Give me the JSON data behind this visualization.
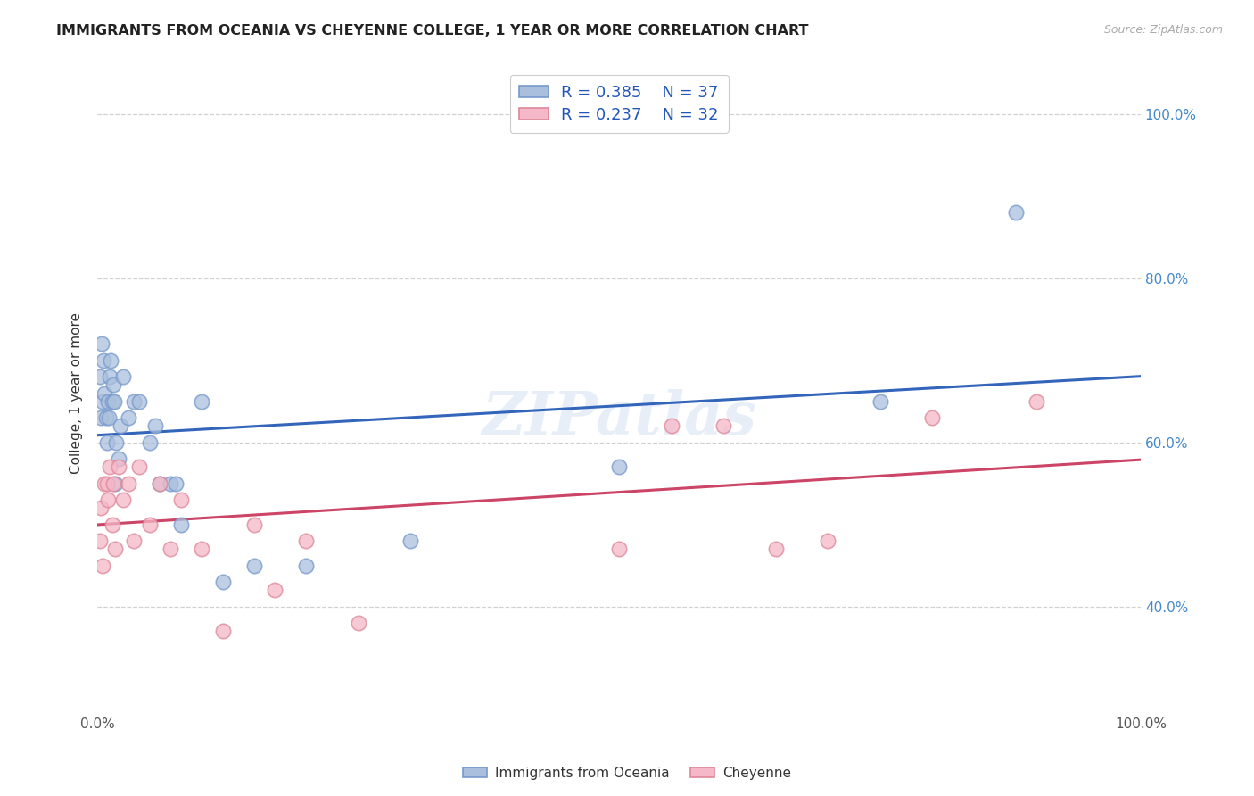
{
  "title": "IMMIGRANTS FROM OCEANIA VS CHEYENNE COLLEGE, 1 YEAR OR MORE CORRELATION CHART",
  "source": "Source: ZipAtlas.com",
  "ylabel": "College, 1 year or more",
  "legend_label1": "Immigrants from Oceania",
  "legend_label2": "Cheyenne",
  "r1": "0.385",
  "n1": "37",
  "r2": "0.237",
  "n2": "32",
  "blue_color": "#aabfdd",
  "blue_edge": "#7799cc",
  "pink_color": "#f5b8c8",
  "pink_edge": "#dd8899",
  "trendline_blue": "#3366bb",
  "trendline_pink": "#cc4466",
  "watermark": "ZIPatlas",
  "blue_intercept": 55.0,
  "blue_slope": 0.33,
  "pink_intercept": 50.5,
  "pink_slope": 0.085,
  "blue_x": [
    0.2,
    0.3,
    0.4,
    0.5,
    0.6,
    0.7,
    0.8,
    0.9,
    1.0,
    1.1,
    1.2,
    1.3,
    1.4,
    1.5,
    1.6,
    1.7,
    1.8,
    2.0,
    2.2,
    2.5,
    3.0,
    3.5,
    4.0,
    5.0,
    5.5,
    6.0,
    7.0,
    7.5,
    8.0,
    10.0,
    12.0,
    15.0,
    20.0,
    30.0,
    50.0,
    75.0,
    88.0
  ],
  "blue_y": [
    68.0,
    63.0,
    72.0,
    65.0,
    70.0,
    66.0,
    63.0,
    60.0,
    65.0,
    63.0,
    68.0,
    70.0,
    65.0,
    67.0,
    65.0,
    55.0,
    60.0,
    58.0,
    62.0,
    68.0,
    63.0,
    65.0,
    65.0,
    60.0,
    62.0,
    55.0,
    55.0,
    55.0,
    50.0,
    65.0,
    43.0,
    45.0,
    45.0,
    48.0,
    57.0,
    65.0,
    88.0
  ],
  "pink_x": [
    0.2,
    0.3,
    0.5,
    0.7,
    0.9,
    1.0,
    1.2,
    1.4,
    1.5,
    1.7,
    2.0,
    2.5,
    3.0,
    3.5,
    4.0,
    5.0,
    6.0,
    7.0,
    8.0,
    10.0,
    12.0,
    15.0,
    17.0,
    20.0,
    25.0,
    50.0,
    55.0,
    60.0,
    65.0,
    70.0,
    80.0,
    90.0
  ],
  "pink_y": [
    48.0,
    52.0,
    45.0,
    55.0,
    55.0,
    53.0,
    57.0,
    50.0,
    55.0,
    47.0,
    57.0,
    53.0,
    55.0,
    48.0,
    57.0,
    50.0,
    55.0,
    47.0,
    53.0,
    47.0,
    37.0,
    50.0,
    42.0,
    48.0,
    38.0,
    47.0,
    62.0,
    62.0,
    47.0,
    48.0,
    63.0,
    65.0
  ],
  "xlim": [
    0,
    100
  ],
  "ylim": [
    27,
    105
  ],
  "ytick_positions": [
    40,
    60,
    80,
    100
  ],
  "ytick_labels": [
    "40.0%",
    "60.0%",
    "80.0%",
    "100.0%"
  ]
}
